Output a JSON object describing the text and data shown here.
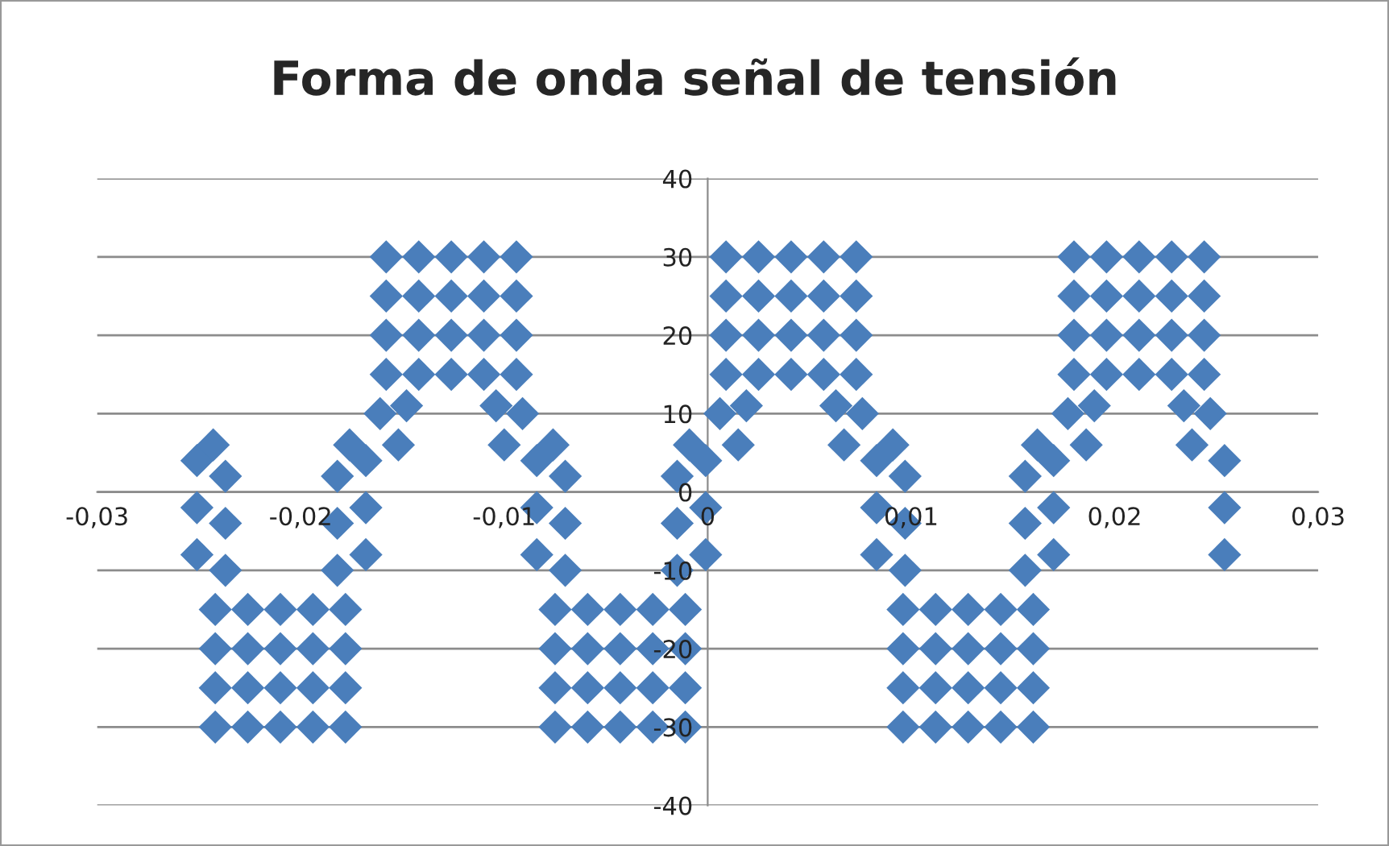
{
  "chart_data": {
    "type": "scatter",
    "title": "Forma de onda señal de tensión",
    "xlim": [
      -0.03,
      0.03
    ],
    "ylim": [
      -40,
      40
    ],
    "xticks": [
      {
        "value": -0.03,
        "label": "-0,03"
      },
      {
        "value": -0.02,
        "label": "-0,02"
      },
      {
        "value": -0.01,
        "label": "-0,01"
      },
      {
        "value": 0,
        "label": "0"
      },
      {
        "value": 0.01,
        "label": "0,01"
      },
      {
        "value": 0.02,
        "label": "0,02"
      },
      {
        "value": 0.03,
        "label": "0,03"
      }
    ],
    "yticks": [
      -40,
      -30,
      -20,
      -10,
      0,
      10,
      20,
      30,
      40
    ],
    "grid": "y",
    "marker": "diamond",
    "series": [
      {
        "color": "#4a7ebb",
        "x": [
          -0.0251,
          -0.0251,
          -0.0251,
          -0.0243,
          -0.0237,
          -0.0237,
          -0.0237,
          -0.0242,
          -0.0242,
          -0.0242,
          -0.0242,
          -0.0226,
          -0.0226,
          -0.0226,
          -0.0226,
          -0.021,
          -0.021,
          -0.021,
          -0.021,
          -0.0194,
          -0.0194,
          -0.0194,
          -0.0194,
          -0.0178,
          -0.0178,
          -0.0178,
          -0.0178,
          -0.0182,
          -0.0182,
          -0.0182,
          -0.0176,
          -0.0168,
          -0.0168,
          -0.0168,
          -0.0161,
          -0.0152,
          -0.0148,
          -0.0158,
          -0.0158,
          -0.0158,
          -0.0158,
          -0.0142,
          -0.0142,
          -0.0142,
          -0.0142,
          -0.0126,
          -0.0126,
          -0.0126,
          -0.0126,
          -0.011,
          -0.011,
          -0.011,
          -0.011,
          -0.0094,
          -0.0094,
          -0.0094,
          -0.0094,
          -0.0104,
          -0.01,
          -0.0091,
          -0.0084,
          -0.0084,
          -0.0084,
          -0.0076,
          -0.007,
          -0.007,
          -0.007,
          -0.0075,
          -0.0075,
          -0.0075,
          -0.0075,
          -0.0059,
          -0.0059,
          -0.0059,
          -0.0059,
          -0.0043,
          -0.0043,
          -0.0043,
          -0.0043,
          -0.0027,
          -0.0027,
          -0.0027,
          -0.0027,
          -0.0011,
          -0.0011,
          -0.0011,
          -0.0011,
          -0.0015,
          -0.0015,
          -0.0015,
          -0.0009,
          -0.0001,
          -0.0001,
          -0.0001,
          0.0006,
          0.0015,
          0.0019,
          0.0009,
          0.0009,
          0.0009,
          0.0009,
          0.0025,
          0.0025,
          0.0025,
          0.0025,
          0.0041,
          0.0041,
          0.0041,
          0.0041,
          0.0057,
          0.0057,
          0.0057,
          0.0057,
          0.0073,
          0.0073,
          0.0073,
          0.0073,
          0.0063,
          0.0067,
          0.0076,
          0.0083,
          0.0083,
          0.0083,
          0.0091,
          0.0097,
          0.0097,
          0.0097,
          0.0096,
          0.0096,
          0.0096,
          0.0096,
          0.0112,
          0.0112,
          0.0112,
          0.0112,
          0.0128,
          0.0128,
          0.0128,
          0.0128,
          0.0144,
          0.0144,
          0.0144,
          0.0144,
          0.016,
          0.016,
          0.016,
          0.016,
          0.0156,
          0.0156,
          0.0156,
          0.0162,
          0.017,
          0.017,
          0.017,
          0.0177,
          0.0186,
          0.019,
          0.018,
          0.018,
          0.018,
          0.018,
          0.0196,
          0.0196,
          0.0196,
          0.0196,
          0.0212,
          0.0212,
          0.0212,
          0.0212,
          0.0228,
          0.0228,
          0.0228,
          0.0228,
          0.0244,
          0.0244,
          0.0244,
          0.0244,
          0.0234,
          0.0238,
          0.0247,
          0.0254,
          0.0254,
          0.0254
        ],
        "values": [
          -8,
          -2,
          4,
          6,
          -10,
          -4,
          2,
          -15,
          -20,
          -25,
          -30,
          -15,
          -20,
          -25,
          -30,
          -15,
          -20,
          -25,
          -30,
          -15,
          -20,
          -25,
          -30,
          -15,
          -20,
          -25,
          -30,
          -10,
          -4,
          2,
          6,
          -8,
          -2,
          4,
          10,
          6,
          11,
          15,
          20,
          25,
          30,
          15,
          20,
          25,
          30,
          15,
          20,
          25,
          30,
          15,
          20,
          25,
          30,
          15,
          20,
          25,
          30,
          11,
          6,
          10,
          -8,
          -2,
          4,
          6,
          -10,
          -4,
          2,
          -15,
          -20,
          -25,
          -30,
          -15,
          -20,
          -25,
          -30,
          -15,
          -20,
          -25,
          -30,
          -15,
          -20,
          -25,
          -30,
          -15,
          -20,
          -25,
          -30,
          -10,
          -4,
          2,
          6,
          -8,
          -2,
          4,
          10,
          6,
          11,
          15,
          20,
          25,
          30,
          15,
          20,
          25,
          30,
          15,
          20,
          25,
          30,
          15,
          20,
          25,
          30,
          15,
          20,
          25,
          30,
          11,
          6,
          10,
          -8,
          -2,
          4,
          6,
          -10,
          -4,
          2,
          -15,
          -20,
          -25,
          -30,
          -15,
          -20,
          -25,
          -30,
          -15,
          -20,
          -25,
          -30,
          -15,
          -20,
          -25,
          -30,
          -15,
          -20,
          -25,
          -30,
          -10,
          -4,
          2,
          6,
          -8,
          -2,
          4,
          10,
          6,
          11,
          15,
          20,
          25,
          30,
          15,
          20,
          25,
          30,
          15,
          20,
          25,
          30,
          15,
          20,
          25,
          30,
          15,
          20,
          25,
          30,
          11,
          6,
          10,
          -8,
          -2,
          4
        ]
      }
    ]
  }
}
